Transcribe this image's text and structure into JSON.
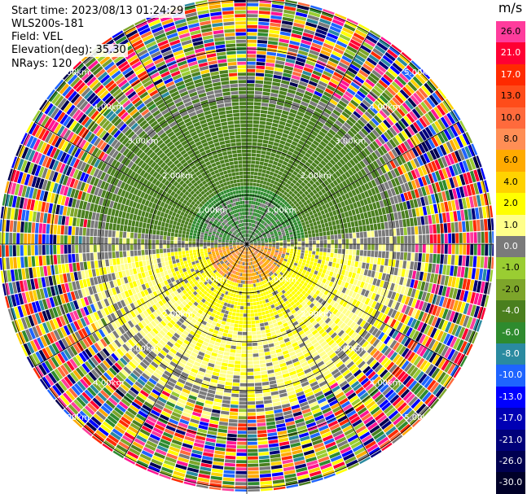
{
  "header": {
    "start_time": "Start time: 2023/08/13 01:24:29",
    "site": "WLS200s-181",
    "field": "Field: VEL",
    "elevation": "Elevation(deg): 35.30",
    "nrays": "NRays: 120"
  },
  "colorbar": {
    "unit": "m/s",
    "levels": [
      {
        "label": "26.0",
        "color": "#ff3c9c"
      },
      {
        "label": "21.0",
        "color": "#ff0033"
      },
      {
        "label": "17.0",
        "color": "#ff2a00"
      },
      {
        "label": "13.0",
        "color": "#ff4c1a"
      },
      {
        "label": "10.0",
        "color": "#ff6a3c"
      },
      {
        "label": "8.0",
        "color": "#ff8e55"
      },
      {
        "label": "6.0",
        "color": "#ffaa00"
      },
      {
        "label": "4.0",
        "color": "#ffd200"
      },
      {
        "label": "2.0",
        "color": "#ffff00"
      },
      {
        "label": "1.0",
        "color": "#ffff8a"
      },
      {
        "label": "0.0",
        "color": "#7a7a7a"
      },
      {
        "label": "-1.0",
        "color": "#9acd32"
      },
      {
        "label": "-2.0",
        "color": "#7da52a"
      },
      {
        "label": "-4.0",
        "color": "#4a7f1e"
      },
      {
        "label": "-6.0",
        "color": "#2e8b2e"
      },
      {
        "label": "-8.0",
        "color": "#2a8aa0"
      },
      {
        "label": "-10.0",
        "color": "#1e64ff"
      },
      {
        "label": "-13.0",
        "color": "#0000ff"
      },
      {
        "label": "-17.0",
        "color": "#0000b4"
      },
      {
        "label": "-21.0",
        "color": "#00007a"
      },
      {
        "label": "-26.0",
        "color": "#000050"
      },
      {
        "label": "-30.0",
        "color": "#000028"
      }
    ]
  },
  "range_rings": {
    "labels": [
      "1.00km",
      "2.00km",
      "3.00km",
      "4.00km",
      "5.00km"
    ]
  }
}
